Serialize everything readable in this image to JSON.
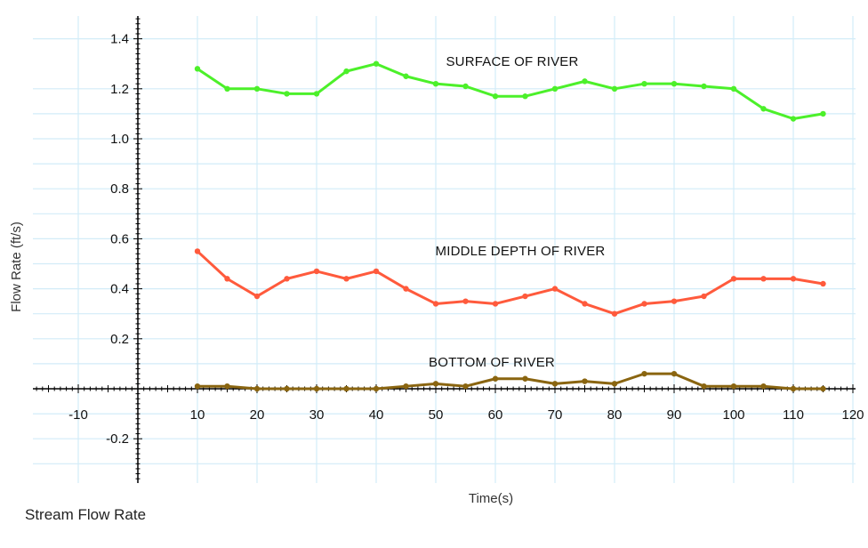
{
  "caption": "Stream Flow Rate",
  "chart_data": {
    "type": "line",
    "title": "",
    "xlabel": "Time(s)",
    "ylabel": "Flow Rate (ft/s)",
    "xlim": [
      -20,
      122
    ],
    "ylim": [
      -0.37,
      1.52
    ],
    "grid": true,
    "x_ticks": [
      -10,
      10,
      20,
      30,
      40,
      50,
      60,
      70,
      80,
      90,
      100,
      110,
      120
    ],
    "y_ticks": [
      -0.2,
      0.2,
      0.4,
      0.6,
      0.8,
      1.0,
      1.2,
      1.4
    ],
    "x_tick_labels": [
      "-10",
      "10",
      "20",
      "30",
      "40",
      "50",
      "60",
      "70",
      "80",
      "90",
      "100",
      "110",
      "120"
    ],
    "y_tick_labels": [
      "-0.2",
      "0.2",
      "0.4",
      "0.6",
      "0.8",
      "1.0",
      "1.2",
      "1.4"
    ],
    "series": [
      {
        "name": "SURFACE OF RIVER",
        "color": "#4cf02a",
        "x": [
          10,
          15,
          20,
          25,
          30,
          35,
          40,
          45,
          50,
          55,
          60,
          65,
          70,
          75,
          80,
          85,
          90,
          95,
          100,
          105,
          110,
          115
        ],
        "y": [
          1.28,
          1.2,
          1.2,
          1.18,
          1.18,
          1.27,
          1.3,
          1.25,
          1.22,
          1.21,
          1.17,
          1.17,
          1.2,
          1.23,
          1.2,
          1.22,
          1.22,
          1.21,
          1.2,
          1.12,
          1.08,
          1.1
        ]
      },
      {
        "name": "MIDDLE  DEPTH OF RIVER",
        "color": "#ff5a3c",
        "x": [
          10,
          15,
          20,
          25,
          30,
          35,
          40,
          45,
          50,
          55,
          60,
          65,
          70,
          75,
          80,
          85,
          90,
          95,
          100,
          105,
          110,
          115
        ],
        "y": [
          0.55,
          0.44,
          0.37,
          0.44,
          0.47,
          0.44,
          0.47,
          0.4,
          0.34,
          0.35,
          0.34,
          0.37,
          0.4,
          0.34,
          0.3,
          0.34,
          0.35,
          0.37,
          0.44,
          0.44,
          0.44,
          0.42
        ]
      },
      {
        "name": "BOTTOM OF RIVER",
        "color": "#8a6510",
        "x": [
          10,
          15,
          20,
          25,
          30,
          35,
          40,
          45,
          50,
          55,
          60,
          65,
          70,
          75,
          80,
          85,
          90,
          95,
          100,
          105,
          110,
          115
        ],
        "y": [
          0.01,
          0.01,
          0.0,
          0.0,
          0.0,
          0.0,
          0.0,
          0.01,
          0.02,
          0.01,
          0.04,
          0.04,
          0.02,
          0.03,
          0.02,
          0.06,
          0.06,
          0.01,
          0.01,
          0.01,
          0.0,
          0.0
        ]
      }
    ]
  }
}
